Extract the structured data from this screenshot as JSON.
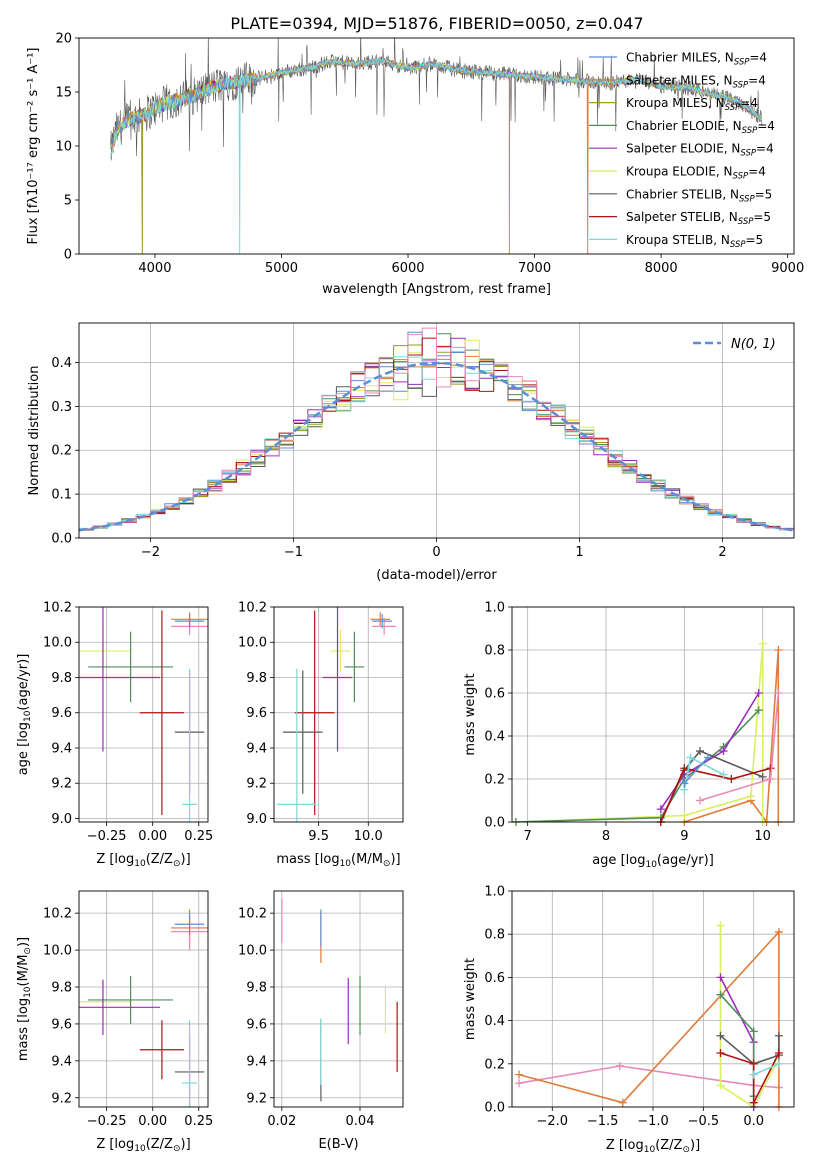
{
  "figure_title": "PLATE=0394, MJD=51876, FIBERID=0050, z=0.047",
  "palette": {
    "chabrier_miles": "#5b8fd6",
    "salpeter_miles": "#e07b39",
    "kroupa_miles": "#9a9a22",
    "chabrier_elodie": "#4e8f5c",
    "salpeter_elodie": "#9b2dbd",
    "kroupa_elodie": "#d9ef63",
    "chabrier_stelib": "#5a5a5a",
    "salpeter_stelib": "#b01212",
    "kroupa_stelib": "#7ed8d8",
    "pink": "#e88ab8",
    "normal_curve": "#5b8fd6"
  },
  "legend_entries": [
    {
      "key": "chabrier_miles",
      "name": "Chabrier MILES",
      "nssp": "N",
      "sub": "SSP",
      "eq": "=4"
    },
    {
      "key": "salpeter_miles",
      "name": "Salpeter MILES",
      "nssp": "N",
      "sub": "SSP",
      "eq": "=4"
    },
    {
      "key": "kroupa_miles",
      "name": "Kroupa MILES",
      "nssp": "N",
      "sub": "SSP",
      "eq": "=4"
    },
    {
      "key": "chabrier_elodie",
      "name": "Chabrier ELODIE",
      "nssp": "N",
      "sub": "SSP",
      "eq": "=4"
    },
    {
      "key": "salpeter_elodie",
      "name": "Salpeter ELODIE",
      "nssp": "N",
      "sub": "SSP",
      "eq": "=4"
    },
    {
      "key": "kroupa_elodie",
      "name": "Kroupa ELODIE",
      "nssp": "N",
      "sub": "SSP",
      "eq": "=4"
    },
    {
      "key": "chabrier_stelib",
      "name": "Chabrier STELIB",
      "nssp": "N",
      "sub": "SSP",
      "eq": "=5"
    },
    {
      "key": "salpeter_stelib",
      "name": "Salpeter STELIB",
      "nssp": "N",
      "sub": "SSP",
      "eq": "=5"
    },
    {
      "key": "kroupa_stelib",
      "name": "Kroupa STELIB",
      "nssp": "N",
      "sub": "SSP",
      "eq": "=5"
    }
  ],
  "chart_data": [
    {
      "id": "spectrum",
      "type": "line",
      "xlabel": "wavelength [Angstrom, rest frame]",
      "ylabel": "Flux [fλ10⁻¹⁷ erg cm⁻² s⁻¹ A⁻¹]",
      "xlim": [
        3400,
        9050
      ],
      "ylim": [
        0,
        20
      ],
      "xticks": [
        4000,
        5000,
        6000,
        7000,
        8000,
        9000
      ],
      "yticks": [
        0,
        5,
        10,
        15,
        20
      ],
      "grid": false,
      "legend": "right",
      "continuum": {
        "x": [
          3650,
          3700,
          3800,
          3900,
          4000,
          4100,
          4200,
          4300,
          4400,
          4500,
          4600,
          4800,
          5000,
          5200,
          5400,
          5600,
          5800,
          6000,
          6200,
          6400,
          6600,
          6800,
          7000,
          7200,
          7400,
          7600,
          7800,
          8000,
          8200,
          8400,
          8600,
          8800
        ],
        "y": [
          9.5,
          11.5,
          12.5,
          12.8,
          13.5,
          14,
          14.3,
          14.6,
          15.2,
          15.6,
          15.9,
          16.2,
          16.8,
          17.2,
          17.8,
          17.6,
          17.9,
          17.2,
          17.6,
          17.0,
          16.8,
          16.6,
          16.4,
          16.2,
          16.0,
          15.8,
          16.2,
          15.5,
          15.4,
          14.8,
          14.2,
          12.5
        ]
      },
      "cutoffs": [
        {
          "series": "kroupa_miles",
          "x": 3900
        },
        {
          "series": "kroupa_stelib",
          "x": 4670
        },
        {
          "series": "kroupa_miles",
          "x": 6800
        },
        {
          "series": "salpeter_miles",
          "x": 7420
        }
      ]
    },
    {
      "id": "residual_hist",
      "type": "histogram",
      "xlabel": "(data-model)/error",
      "ylabel": "Normed distribution",
      "xlim": [
        -2.5,
        2.5
      ],
      "ylim": [
        0,
        0.49
      ],
      "xticks": [
        -2,
        -1,
        0,
        1,
        2
      ],
      "yticks": [
        0.0,
        0.1,
        0.2,
        0.3,
        0.4
      ],
      "grid": true,
      "bin_width": 0.1,
      "legend": "top-right",
      "normal_label": "N(0, 1)"
    },
    {
      "id": "age_vs_z",
      "type": "scatter",
      "xlabel_pre": "Z [log",
      "xlabel_sub": "10",
      "xlabel_post": "(Z/Z",
      "xlabel_end": ")]",
      "ylabel_pre": "age  [log",
      "ylabel_sub": "10",
      "ylabel_post": "(age/yr)]",
      "xlim": [
        -0.4,
        0.3
      ],
      "ylim": [
        8.98,
        10.2
      ],
      "xticks": [
        -0.25,
        0.0,
        0.25
      ],
      "xtick_labels": [
        "−0.25",
        "0.00",
        "0.25"
      ],
      "yticks": [
        9.0,
        9.2,
        9.4,
        9.6,
        9.8,
        10.0,
        10.2
      ],
      "grid": true,
      "points": [
        {
          "s": "kroupa_elodie",
          "x": -0.27,
          "y": 9.95,
          "xerr": 0.15,
          "yerr": 0.12
        },
        {
          "s": "chabrier_elodie",
          "x": -0.12,
          "y": 9.86,
          "xerr": 0.23,
          "yerr": 0.2
        },
        {
          "s": "salpeter_elodie",
          "x": -0.27,
          "y": 9.8,
          "xerr": 0.31,
          "yerr": 0.42
        },
        {
          "s": "salpeter_stelib",
          "x": 0.05,
          "y": 9.6,
          "xerr": 0.12,
          "yerr": 0.58
        },
        {
          "s": "chabrier_stelib",
          "x": 0.2,
          "y": 9.49,
          "xerr": 0.08,
          "yerr": 0.35
        },
        {
          "s": "kroupa_stelib",
          "x": 0.2,
          "y": 9.08,
          "xerr": 0.04,
          "yerr": 0.77
        },
        {
          "s": "salpeter_miles",
          "x": 0.2,
          "y": 10.13,
          "xerr": 0.1,
          "yerr": 0.04
        },
        {
          "s": "pink",
          "x": 0.2,
          "y": 10.09,
          "xerr": 0.1,
          "yerr": 0.05
        },
        {
          "s": "chabrier_miles",
          "x": 0.2,
          "y": 10.12,
          "xerr": 0.08,
          "yerr": 0.04
        }
      ]
    },
    {
      "id": "age_vs_mass",
      "type": "scatter",
      "xlabel_pre": "mass [log",
      "xlabel_sub": "10",
      "xlabel_post": "(M/M",
      "xlabel_end": ")]",
      "xlim": [
        9.05,
        10.35
      ],
      "ylim": [
        8.98,
        10.2
      ],
      "xticks": [
        9.5,
        10.0
      ],
      "xtick_labels": [
        "9.5",
        "10.0"
      ],
      "yticks": [
        9.0,
        9.2,
        9.4,
        9.6,
        9.8,
        10.0,
        10.2
      ],
      "grid": true,
      "points": [
        {
          "s": "kroupa_elodie",
          "x": 9.72,
          "y": 9.95,
          "xerr": 0.1,
          "yerr": 0.12
        },
        {
          "s": "chabrier_elodie",
          "x": 9.86,
          "y": 9.86,
          "xerr": 0.1,
          "yerr": 0.2
        },
        {
          "s": "salpeter_elodie",
          "x": 9.69,
          "y": 9.8,
          "xerr": 0.15,
          "yerr": 0.42
        },
        {
          "s": "salpeter_stelib",
          "x": 9.46,
          "y": 9.6,
          "xerr": 0.2,
          "yerr": 0.58
        },
        {
          "s": "chabrier_stelib",
          "x": 9.34,
          "y": 9.49,
          "xerr": 0.2,
          "yerr": 0.35
        },
        {
          "s": "kroupa_stelib",
          "x": 9.28,
          "y": 9.08,
          "xerr": 0.2,
          "yerr": 0.77
        },
        {
          "s": "salpeter_miles",
          "x": 10.12,
          "y": 10.13,
          "xerr": 0.1,
          "yerr": 0.04
        },
        {
          "s": "pink",
          "x": 10.16,
          "y": 10.09,
          "xerr": 0.12,
          "yerr": 0.05
        },
        {
          "s": "chabrier_miles",
          "x": 10.14,
          "y": 10.12,
          "xerr": 0.1,
          "yerr": 0.04
        }
      ]
    },
    {
      "id": "weight_vs_age",
      "type": "line",
      "xlabel_pre": "age  [log",
      "xlabel_sub": "10",
      "xlabel_post": "(age/yr)]",
      "ylabel": "mass weight",
      "xlim": [
        6.8,
        10.4
      ],
      "ylim": [
        0,
        1.0
      ],
      "xticks": [
        7,
        8,
        9,
        10
      ],
      "yticks": [
        0.0,
        0.2,
        0.4,
        0.6,
        0.8,
        1.0
      ],
      "grid": true,
      "series": [
        {
          "s": "salpeter_miles",
          "x": [
            9.0,
            9.85,
            10.05,
            10.2,
            10.2
          ],
          "y": [
            0.0,
            0.1,
            0.0,
            0.8,
            0.0
          ]
        },
        {
          "s": "kroupa_elodie",
          "x": [
            6.85,
            9.0,
            9.85,
            10.0,
            10.0
          ],
          "y": [
            0.0,
            0.03,
            0.12,
            0.83,
            0.0
          ]
        },
        {
          "s": "chabrier_elodie",
          "x": [
            6.85,
            8.7,
            9.0,
            9.5,
            9.95
          ],
          "y": [
            0.0,
            0.02,
            0.2,
            0.35,
            0.52
          ]
        },
        {
          "s": "salpeter_elodie",
          "x": [
            8.7,
            9.0,
            9.5,
            9.95
          ],
          "y": [
            0.06,
            0.22,
            0.33,
            0.6
          ]
        },
        {
          "s": "chabrier_stelib",
          "x": [
            8.7,
            9.0,
            9.2,
            10.0
          ],
          "y": [
            0.0,
            0.24,
            0.33,
            0.21
          ]
        },
        {
          "s": "salpeter_stelib",
          "x": [
            8.7,
            9.0,
            9.6,
            10.1
          ],
          "y": [
            0.0,
            0.25,
            0.2,
            0.25
          ]
        },
        {
          "s": "kroupa_stelib",
          "x": [
            9.0,
            9.08,
            9.5
          ],
          "y": [
            0.15,
            0.3,
            0.22
          ]
        },
        {
          "s": "pink",
          "x": [
            9.2,
            10.1,
            10.2
          ],
          "y": [
            0.1,
            0.2,
            0.6
          ]
        },
        {
          "s": "chabrier_miles",
          "x": [
            9.0,
            9.3
          ],
          "y": [
            0.18,
            0.3
          ]
        }
      ]
    },
    {
      "id": "mass_vs_z",
      "type": "scatter",
      "xlabel_pre": "Z [log",
      "xlabel_sub": "10",
      "xlabel_post": "(Z/Z",
      "xlabel_end": ")]",
      "ylabel_pre": "mass [log",
      "ylabel_sub": "10",
      "ylabel_post": "(M/M",
      "ylabel_end": ")]",
      "xlim": [
        -0.4,
        0.3
      ],
      "ylim": [
        9.15,
        10.32
      ],
      "xticks": [
        -0.25,
        0.0,
        0.25
      ],
      "xtick_labels": [
        "−0.25",
        "0.00",
        "0.25"
      ],
      "yticks": [
        9.2,
        9.4,
        9.6,
        9.8,
        10.0,
        10.2
      ],
      "grid": true,
      "points": [
        {
          "s": "kroupa_elodie",
          "x": -0.27,
          "y": 9.72,
          "xerr": 0.15,
          "yerr": 0.1
        },
        {
          "s": "chabrier_elodie",
          "x": -0.12,
          "y": 9.73,
          "xerr": 0.23,
          "yerr": 0.13
        },
        {
          "s": "salpeter_elodie",
          "x": -0.27,
          "y": 9.69,
          "xerr": 0.31,
          "yerr": 0.15
        },
        {
          "s": "salpeter_stelib",
          "x": 0.05,
          "y": 9.46,
          "xerr": 0.12,
          "yerr": 0.16
        },
        {
          "s": "chabrier_stelib",
          "x": 0.2,
          "y": 9.34,
          "xerr": 0.08,
          "yerr": 0.2
        },
        {
          "s": "kroupa_stelib",
          "x": 0.2,
          "y": 9.28,
          "xerr": 0.04,
          "yerr": 0.34
        },
        {
          "s": "salpeter_miles",
          "x": 0.2,
          "y": 10.12,
          "xerr": 0.1,
          "yerr": 0.1
        },
        {
          "s": "pink",
          "x": 0.2,
          "y": 10.1,
          "xerr": 0.1,
          "yerr": 0.1
        },
        {
          "s": "chabrier_miles",
          "x": 0.2,
          "y": 10.14,
          "xerr": 0.08,
          "yerr": 0.06
        }
      ]
    },
    {
      "id": "mass_vs_ebv",
      "type": "scatter",
      "xlabel": "E(B-V)",
      "xlim": [
        0.018,
        0.051
      ],
      "ylim": [
        9.15,
        10.32
      ],
      "xticks": [
        0.02,
        0.04
      ],
      "xtick_labels": [
        "0.02",
        "0.04"
      ],
      "yticks": [
        9.2,
        9.4,
        9.6,
        9.8,
        10.0,
        10.2
      ],
      "grid": true,
      "points": [
        {
          "s": "pink",
          "x": 0.02,
          "y": 10.16,
          "xerr": 0,
          "yerr": 0.12
        },
        {
          "s": "salpeter_miles",
          "x": 0.03,
          "y": 10.07,
          "xerr": 0,
          "yerr": 0.14
        },
        {
          "s": "chabrier_miles",
          "x": 0.03,
          "y": 10.12,
          "xerr": 0,
          "yerr": 0.1
        },
        {
          "s": "chabrier_stelib",
          "x": 0.03,
          "y": 9.4,
          "xerr": 0,
          "yerr": 0.22
        },
        {
          "s": "kroupa_stelib",
          "x": 0.03,
          "y": 9.45,
          "xerr": 0,
          "yerr": 0.18
        },
        {
          "s": "salpeter_elodie",
          "x": 0.037,
          "y": 9.67,
          "xerr": 0,
          "yerr": 0.18
        },
        {
          "s": "chabrier_elodie",
          "x": 0.04,
          "y": 9.7,
          "xerr": 0,
          "yerr": 0.16
        },
        {
          "s": "kroupa_elodie",
          "x": 0.0465,
          "y": 9.68,
          "xerr": 0,
          "yerr": 0.13
        },
        {
          "s": "salpeter_stelib",
          "x": 0.0495,
          "y": 9.53,
          "xerr": 0,
          "yerr": 0.19
        }
      ]
    },
    {
      "id": "weight_vs_z",
      "type": "line",
      "xlabel_pre": "Z [log",
      "xlabel_sub": "10",
      "xlabel_post": "(Z/Z",
      "xlabel_end": ")]",
      "ylabel": "mass weight",
      "xlim": [
        -2.4,
        0.4
      ],
      "ylim": [
        0,
        1.0
      ],
      "xticks": [
        -2.0,
        -1.5,
        -1.0,
        -0.5,
        0.0
      ],
      "xtick_labels": [
        "−2.0",
        "−1.5",
        "−1.0",
        "−0.5",
        "0.0"
      ],
      "yticks": [
        0.0,
        0.2,
        0.4,
        0.6,
        0.8,
        1.0
      ],
      "grid": true,
      "series": [
        {
          "s": "pink",
          "x": [
            -2.33,
            -1.33,
            0.0,
            0.25
          ],
          "y": [
            0.11,
            0.19,
            0.1,
            0.09
          ]
        },
        {
          "s": "salpeter_miles",
          "x": [
            -2.33,
            -1.3,
            0.25,
            0.25
          ],
          "y": [
            0.15,
            0.02,
            0.81,
            0.0
          ]
        },
        {
          "s": "kroupa_elodie",
          "x": [
            -0.33,
            -0.33,
            0.0,
            0.22
          ],
          "y": [
            0.84,
            0.1,
            0.0,
            0.2
          ]
        },
        {
          "s": "salpeter_elodie",
          "x": [
            -0.33,
            0.0,
            0.0
          ],
          "y": [
            0.6,
            0.3,
            0.0
          ]
        },
        {
          "s": "chabrier_elodie",
          "x": [
            -0.33,
            0.0,
            0.0
          ],
          "y": [
            0.52,
            0.35,
            0.05
          ]
        },
        {
          "s": "chabrier_stelib",
          "x": [
            -0.33,
            0.0,
            0.25,
            0.25
          ],
          "y": [
            0.33,
            0.2,
            0.24,
            0.33
          ]
        },
        {
          "s": "salpeter_stelib",
          "x": [
            -0.33,
            0.0,
            0.0,
            0.25
          ],
          "y": [
            0.25,
            0.2,
            0.02,
            0.25
          ]
        },
        {
          "s": "kroupa_stelib",
          "x": [
            0.0,
            0.25
          ],
          "y": [
            0.15,
            0.2
          ]
        }
      ]
    }
  ]
}
